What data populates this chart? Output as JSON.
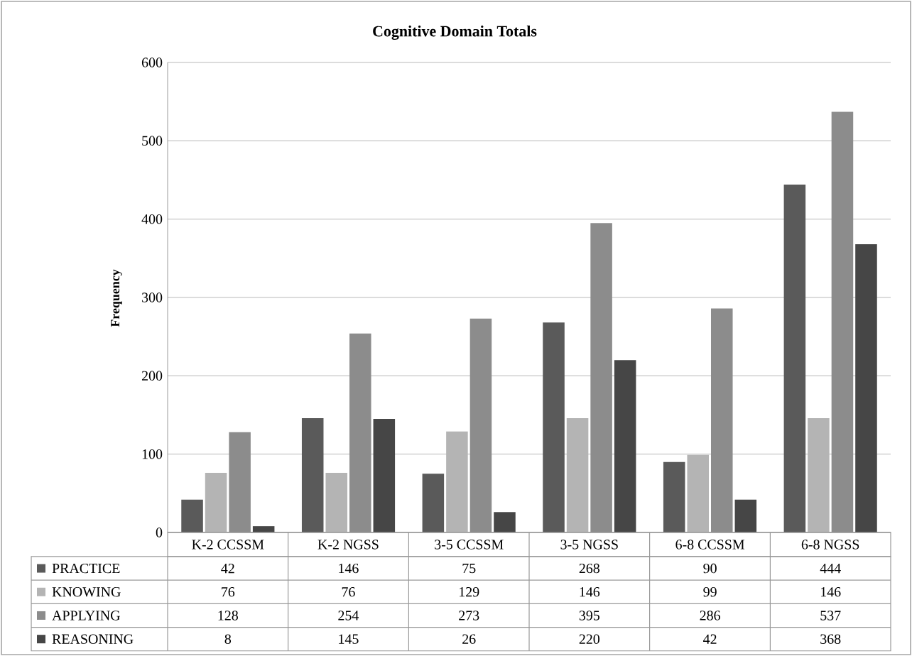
{
  "chart_data": {
    "type": "bar",
    "title": "Cognitive Domain Totals",
    "ylabel": "Frequency",
    "categories": [
      "K-2 CCSSM",
      "K-2 NGSS",
      "3-5 CCSSM",
      "3-5 NGSS",
      "6-8 CCSSM",
      "6-8 NGSS"
    ],
    "series": [
      {
        "name": "PRACTICE",
        "color": "#5a5a5a",
        "values": [
          42,
          146,
          75,
          268,
          90,
          444
        ]
      },
      {
        "name": "KNOWING",
        "color": "#b4b4b4",
        "values": [
          76,
          76,
          129,
          146,
          99,
          146
        ]
      },
      {
        "name": "APPLYING",
        "color": "#8c8c8c",
        "values": [
          128,
          254,
          273,
          395,
          286,
          537
        ]
      },
      {
        "name": "REASONING",
        "color": "#464646",
        "values": [
          8,
          145,
          26,
          220,
          42,
          368
        ]
      }
    ],
    "ylim": [
      0,
      600
    ],
    "yticks": [
      0,
      100,
      200,
      300,
      400,
      500,
      600
    ],
    "grid": "y",
    "legend": "bottom",
    "data_labels": true
  }
}
